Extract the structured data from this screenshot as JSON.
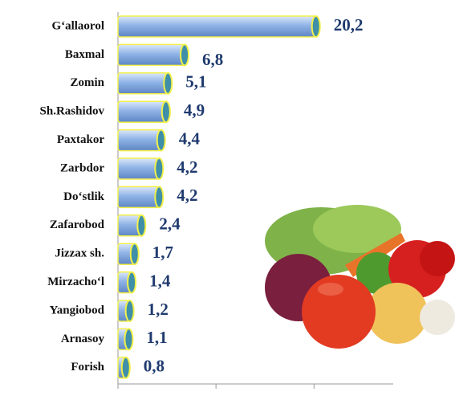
{
  "chart_data": {
    "type": "bar",
    "categories": [
      "G‘allaorol",
      "Baxmal",
      "Zomin",
      "Sh.Rashidov",
      "Paxtakor",
      "Zarbdor",
      "Do‘stlik",
      "Zafarobod",
      "Jizzax sh.",
      "Mirzacho‘l",
      "Yangiobod",
      "Arnasoy",
      "Forish"
    ],
    "values": [
      20.2,
      6.8,
      5.1,
      4.9,
      4.4,
      4.2,
      4.2,
      2.4,
      1.7,
      1.4,
      1.2,
      1.1,
      0.8
    ],
    "value_labels": [
      "20,2",
      "6,8",
      "5,1",
      "4,9",
      "4,4",
      "4,2",
      "4,2",
      "2,4",
      "1,7",
      "1,4",
      "1,2",
      "1,1",
      "0,8"
    ],
    "color": "#8fb3e6",
    "xlim": [
      0,
      28
    ],
    "xticks": [
      0,
      10,
      20
    ]
  }
}
